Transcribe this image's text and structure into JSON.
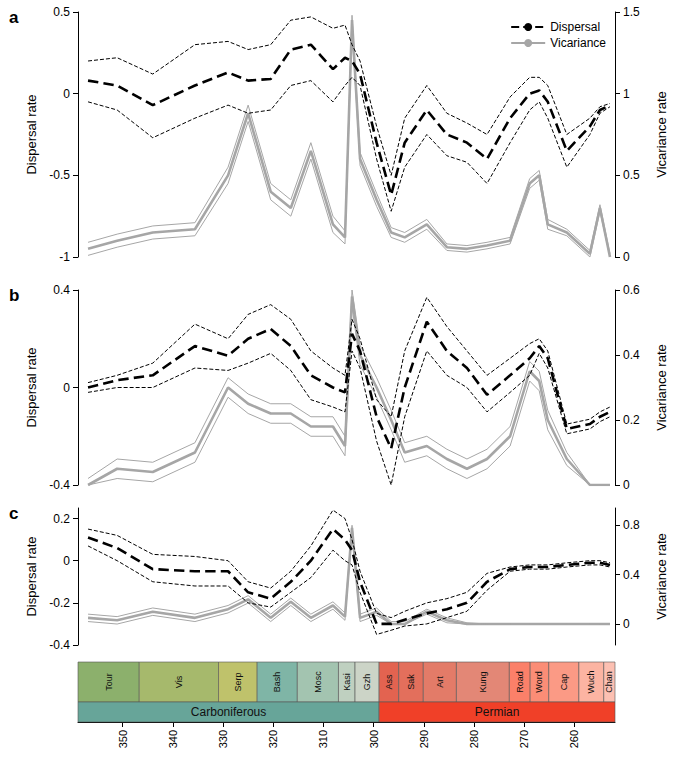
{
  "chart_data": [
    {
      "type": "line",
      "title": "a",
      "ylabel": "Dispersal rate",
      "y2label": "Vicariance rate",
      "legend": "upper right",
      "xlim": [
        358.9,
        251.9
      ],
      "ylim": [
        -1,
        0.5
      ],
      "yticks": [
        -1,
        -0.5,
        0,
        0.5
      ],
      "y2lim": [
        0,
        1.5
      ],
      "y2ticks": [
        0,
        0.5,
        1,
        1.5
      ],
      "x": [
        356.9,
        351.1,
        344.0,
        335.6,
        329.0,
        325.0,
        320.5,
        316.5,
        312.5,
        308.1,
        305.7,
        304.3,
        302.7,
        299.4,
        296.5,
        293.8,
        289.4,
        285.4,
        281.4,
        277.4,
        272.8,
        268.9,
        267.0,
        265.3,
        261.5,
        256.9,
        254.9,
        252.9
      ],
      "series": [
        {
          "name": "Dispersal",
          "color": "#000000",
          "line_style": "dashed",
          "axis": "y",
          "values": [
            0.08,
            0.05,
            -0.07,
            0.05,
            0.13,
            0.08,
            0.09,
            0.27,
            0.3,
            0.15,
            0.22,
            0.2,
            0.12,
            -0.3,
            -0.62,
            -0.3,
            -0.1,
            -0.25,
            -0.3,
            -0.4,
            -0.15,
            0.0,
            0.02,
            -0.05,
            -0.35,
            -0.2,
            -0.1,
            -0.07
          ],
          "upper": [
            0.2,
            0.22,
            0.12,
            0.3,
            0.32,
            0.27,
            0.3,
            0.45,
            0.47,
            0.4,
            0.42,
            0.3,
            0.2,
            -0.2,
            -0.5,
            -0.15,
            0.05,
            -0.12,
            -0.18,
            -0.25,
            -0.02,
            0.1,
            0.1,
            0.05,
            -0.25,
            -0.15,
            -0.08,
            -0.06
          ],
          "lower": [
            -0.05,
            -0.1,
            -0.27,
            -0.15,
            -0.07,
            -0.12,
            -0.1,
            0.05,
            0.08,
            -0.05,
            0.05,
            0.1,
            0.05,
            -0.4,
            -0.72,
            -0.45,
            -0.25,
            -0.38,
            -0.42,
            -0.55,
            -0.3,
            -0.1,
            -0.05,
            -0.15,
            -0.45,
            -0.25,
            -0.12,
            -0.08
          ]
        },
        {
          "name": "Vicariance",
          "color": "#a6a6a6",
          "line_style": "solid",
          "axis": "y2",
          "values": [
            0.05,
            0.1,
            0.15,
            0.17,
            0.5,
            0.88,
            0.4,
            0.3,
            0.65,
            0.2,
            0.12,
            1.45,
            0.6,
            0.35,
            0.15,
            0.12,
            0.2,
            0.06,
            0.05,
            0.07,
            0.1,
            0.45,
            0.5,
            0.2,
            0.15,
            0.02,
            0.3,
            0.0
          ],
          "upper": [
            0.09,
            0.14,
            0.19,
            0.21,
            0.55,
            0.93,
            0.45,
            0.35,
            0.7,
            0.25,
            0.16,
            1.48,
            0.64,
            0.39,
            0.18,
            0.15,
            0.23,
            0.08,
            0.07,
            0.09,
            0.12,
            0.48,
            0.53,
            0.23,
            0.17,
            0.04,
            0.32,
            0.02
          ],
          "lower": [
            0.01,
            0.06,
            0.11,
            0.13,
            0.45,
            0.83,
            0.35,
            0.25,
            0.6,
            0.15,
            0.08,
            1.42,
            0.56,
            0.31,
            0.12,
            0.09,
            0.17,
            0.04,
            0.03,
            0.05,
            0.08,
            0.42,
            0.47,
            0.17,
            0.13,
            0.0,
            0.28,
            0.0
          ]
        }
      ]
    },
    {
      "type": "line",
      "title": "b",
      "ylabel": "Dispersal rate",
      "y2label": "Vicariance rate",
      "xlim": [
        358.9,
        251.9
      ],
      "ylim": [
        -0.4,
        0.4
      ],
      "yticks": [
        -0.4,
        0,
        0.4
      ],
      "y2lim": [
        0,
        0.6
      ],
      "y2ticks": [
        0,
        0.2,
        0.4,
        0.6
      ],
      "x": [
        356.9,
        351.1,
        344.0,
        335.6,
        329.0,
        325.0,
        320.5,
        316.5,
        312.5,
        308.1,
        305.7,
        304.3,
        302.7,
        299.4,
        296.5,
        293.8,
        289.4,
        285.4,
        281.4,
        277.4,
        272.8,
        268.9,
        267.0,
        265.3,
        261.5,
        256.9,
        254.9,
        252.9
      ],
      "series": [
        {
          "color": "#000000",
          "line_style": "dashed",
          "axis": "y",
          "values": [
            0.0,
            0.03,
            0.05,
            0.17,
            0.13,
            0.2,
            0.24,
            0.17,
            0.05,
            0.0,
            -0.02,
            0.22,
            0.15,
            -0.12,
            -0.25,
            0.0,
            0.27,
            0.15,
            0.08,
            -0.03,
            0.05,
            0.12,
            0.17,
            0.12,
            -0.17,
            -0.15,
            -0.12,
            -0.1
          ],
          "upper": [
            0.02,
            0.05,
            0.1,
            0.26,
            0.2,
            0.3,
            0.34,
            0.28,
            0.15,
            0.08,
            0.05,
            0.28,
            0.2,
            -0.05,
            -0.12,
            0.15,
            0.37,
            0.25,
            0.15,
            0.05,
            0.12,
            0.18,
            0.2,
            0.15,
            -0.15,
            -0.13,
            -0.1,
            -0.08
          ],
          "lower": [
            -0.02,
            0.0,
            0.0,
            0.08,
            0.07,
            0.1,
            0.14,
            0.07,
            -0.05,
            -0.08,
            -0.1,
            0.15,
            0.08,
            -0.22,
            -0.4,
            -0.12,
            0.15,
            0.05,
            0.0,
            -0.1,
            -0.02,
            0.05,
            0.14,
            0.08,
            -0.19,
            -0.17,
            -0.14,
            -0.12
          ]
        },
        {
          "color": "#a6a6a6",
          "line_style": "solid",
          "axis": "y2",
          "values": [
            0.0,
            0.05,
            0.04,
            0.1,
            0.3,
            0.25,
            0.22,
            0.22,
            0.18,
            0.18,
            0.12,
            0.58,
            0.4,
            0.3,
            0.2,
            0.1,
            0.12,
            0.08,
            0.05,
            0.08,
            0.15,
            0.35,
            0.32,
            0.2,
            0.08,
            0.0,
            0.0,
            0.0
          ],
          "upper": [
            0.02,
            0.08,
            0.07,
            0.13,
            0.33,
            0.28,
            0.25,
            0.25,
            0.21,
            0.21,
            0.15,
            0.6,
            0.43,
            0.33,
            0.23,
            0.13,
            0.15,
            0.11,
            0.08,
            0.11,
            0.18,
            0.38,
            0.35,
            0.23,
            0.1,
            0.0,
            0.0,
            0.0
          ],
          "lower": [
            0.0,
            0.02,
            0.01,
            0.07,
            0.27,
            0.22,
            0.19,
            0.19,
            0.15,
            0.15,
            0.09,
            0.55,
            0.37,
            0.27,
            0.17,
            0.07,
            0.09,
            0.05,
            0.02,
            0.05,
            0.12,
            0.32,
            0.29,
            0.17,
            0.06,
            0.0,
            0.0,
            0.0
          ]
        }
      ]
    },
    {
      "type": "line",
      "title": "c",
      "ylabel": "Dispersal rate",
      "y2label": "Vicariance rate",
      "xlim": [
        358.9,
        251.9
      ],
      "ylim": [
        -0.4,
        0.25
      ],
      "yticks": [
        -0.4,
        -0.2,
        0,
        0.2
      ],
      "y2lim": [
        -0.17,
        0.94
      ],
      "y2ticks": [
        0,
        0.4,
        0.8
      ],
      "x": [
        356.9,
        351.1,
        344.0,
        335.6,
        329.0,
        325.0,
        320.5,
        316.5,
        312.5,
        308.1,
        305.7,
        304.3,
        302.7,
        299.4,
        296.5,
        293.8,
        289.4,
        285.4,
        281.4,
        277.4,
        272.8,
        268.9,
        267.0,
        265.3,
        261.5,
        256.9,
        254.9,
        252.9
      ],
      "series": [
        {
          "color": "#000000",
          "line_style": "dashed",
          "axis": "y",
          "values": [
            0.11,
            0.06,
            -0.04,
            -0.05,
            -0.05,
            -0.15,
            -0.18,
            -0.1,
            0.0,
            0.15,
            0.1,
            0.05,
            -0.1,
            -0.3,
            -0.3,
            -0.28,
            -0.25,
            -0.23,
            -0.2,
            -0.1,
            -0.04,
            -0.03,
            -0.03,
            -0.03,
            -0.02,
            -0.01,
            -0.01,
            -0.02
          ],
          "upper": [
            0.15,
            0.12,
            0.03,
            0.02,
            0.0,
            -0.1,
            -0.13,
            -0.05,
            0.07,
            0.24,
            0.2,
            0.1,
            -0.05,
            -0.25,
            -0.27,
            -0.24,
            -0.2,
            -0.18,
            -0.15,
            -0.06,
            -0.03,
            -0.02,
            -0.02,
            -0.02,
            -0.01,
            0.0,
            0.0,
            -0.01
          ],
          "lower": [
            0.07,
            0.0,
            -0.1,
            -0.12,
            -0.12,
            -0.2,
            -0.22,
            -0.15,
            -0.08,
            0.05,
            0.0,
            -0.02,
            -0.15,
            -0.35,
            -0.33,
            -0.31,
            -0.3,
            -0.27,
            -0.24,
            -0.14,
            -0.05,
            -0.04,
            -0.04,
            -0.04,
            -0.03,
            -0.02,
            -0.02,
            -0.03
          ]
        },
        {
          "color": "#a6a6a6",
          "line_style": "solid",
          "axis": "y2",
          "values": [
            0.05,
            0.03,
            0.1,
            0.05,
            0.12,
            0.2,
            0.05,
            0.18,
            0.05,
            0.15,
            0.06,
            0.78,
            0.05,
            0.1,
            0.0,
            0.0,
            0.1,
            0.03,
            0.0,
            0.0,
            0.0,
            0.0,
            0.0,
            0.0,
            0.0,
            0.0,
            0.0,
            0.0
          ],
          "upper": [
            0.08,
            0.06,
            0.13,
            0.08,
            0.15,
            0.23,
            0.08,
            0.21,
            0.08,
            0.18,
            0.09,
            0.8,
            0.08,
            0.13,
            0.02,
            0.02,
            0.12,
            0.05,
            0.01,
            0.0,
            0.0,
            0.0,
            0.0,
            0.0,
            0.0,
            0.0,
            0.0,
            0.0
          ],
          "lower": [
            0.02,
            0.0,
            0.07,
            0.02,
            0.09,
            0.17,
            0.02,
            0.15,
            0.02,
            0.12,
            0.03,
            0.75,
            0.02,
            0.07,
            0.0,
            0.0,
            0.08,
            0.01,
            0.0,
            0.0,
            0.0,
            0.0,
            0.0,
            0.0,
            0.0,
            0.0,
            0.0,
            0.0
          ]
        }
      ]
    }
  ],
  "timescale": {
    "xlim": [
      358.9,
      251.9
    ],
    "xticks": [
      350,
      340,
      330,
      320,
      310,
      300,
      290,
      280,
      270,
      260
    ],
    "stages": [
      {
        "label": "Tour",
        "start": 358.9,
        "end": 346.7,
        "color": "#8cb06c"
      },
      {
        "label": "Vis",
        "start": 346.7,
        "end": 330.9,
        "color": "#a6b96c"
      },
      {
        "label": "Serp",
        "start": 330.9,
        "end": 323.2,
        "color": "#bfc26b"
      },
      {
        "label": "Bash",
        "start": 323.2,
        "end": 315.2,
        "color": "#7fb5a6"
      },
      {
        "label": "Mosc",
        "start": 315.2,
        "end": 307.0,
        "color": "#a3c4b0"
      },
      {
        "label": "Kasi",
        "start": 307.0,
        "end": 303.7,
        "color": "#bfd0c0"
      },
      {
        "label": "Gzh",
        "start": 303.7,
        "end": 298.9,
        "color": "#ccd4c7"
      },
      {
        "label": "Ass",
        "start": 298.9,
        "end": 295.0,
        "color": "#e36350"
      },
      {
        "label": "Sak",
        "start": 295.0,
        "end": 290.1,
        "color": "#e36f5c"
      },
      {
        "label": "Art",
        "start": 290.1,
        "end": 283.5,
        "color": "#e37b68"
      },
      {
        "label": "Kung",
        "start": 283.5,
        "end": 272.95,
        "color": "#e38776"
      },
      {
        "label": "Road",
        "start": 272.95,
        "end": 268.8,
        "color": "#fb8069"
      },
      {
        "label": "Word",
        "start": 268.8,
        "end": 265.1,
        "color": "#fb8d76"
      },
      {
        "label": "Cap",
        "start": 265.1,
        "end": 259.1,
        "color": "#fb9a85"
      },
      {
        "label": "Wuch",
        "start": 259.1,
        "end": 254.14,
        "color": "#fcb4a2"
      },
      {
        "label": "Chan",
        "start": 254.14,
        "end": 251.9,
        "color": "#fcc0b2"
      }
    ],
    "periods": [
      {
        "label": "Carboniferous",
        "start": 358.9,
        "end": 298.9,
        "color": "#67a599"
      },
      {
        "label": "Permian",
        "start": 298.9,
        "end": 251.9,
        "color": "#f04028"
      }
    ]
  }
}
